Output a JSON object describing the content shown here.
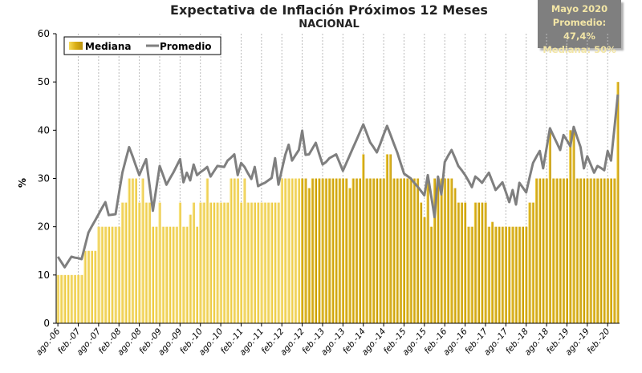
{
  "chart_data": {
    "type": "bar+line",
    "title": "Expectativa de Inflación Próximos 12 Meses",
    "subtitle": "NACIONAL",
    "ylabel": "%",
    "xlabel": "",
    "ylim": [
      0,
      60
    ],
    "yticks": [
      0,
      10,
      20,
      30,
      40,
      50,
      60
    ],
    "grid": "vertical dashed at each labeled month",
    "legend_position": "top-left",
    "annotation": {
      "line1": "Mayo 2020",
      "line2": "Promedio: 47,4%",
      "line3": "Mediana: 50%"
    },
    "x_start": "ago.-06",
    "x_end": "may.-20",
    "x_frequency": "monthly",
    "xtick_labels": [
      "ago.-06",
      "feb.-07",
      "ago.-07",
      "feb.-08",
      "ago.-08",
      "feb.-09",
      "ago.-09",
      "feb.-10",
      "ago.-10",
      "feb.-11",
      "ago.-11",
      "feb.-12",
      "ago.-12",
      "feb.-13",
      "ago.-13",
      "feb.-14",
      "ago.-14",
      "feb.-15",
      "ago.-15",
      "feb.-16",
      "ago.-16",
      "feb.-17",
      "ago.-17",
      "feb.-18",
      "ago.-18",
      "feb.-19",
      "ago.-19",
      "feb.-20"
    ],
    "series": [
      {
        "name": "Mediana",
        "type": "bar",
        "color": "#d8b020",
        "values": [
          10,
          10,
          10,
          10,
          10,
          10,
          10,
          10,
          15,
          15,
          15,
          15,
          20,
          20,
          20,
          20,
          20,
          20,
          20,
          25,
          25,
          30,
          30,
          30,
          25,
          30,
          25,
          25,
          20,
          20,
          25,
          20,
          20,
          20,
          20,
          20,
          25,
          20,
          20,
          22.5,
          25,
          20,
          25,
          25,
          30,
          25,
          25,
          25,
          25,
          25,
          25,
          30,
          30,
          30,
          25,
          30,
          25,
          25,
          25,
          25,
          25,
          25,
          25,
          25,
          25,
          25,
          30,
          30,
          30,
          30,
          30,
          30,
          30,
          30,
          28,
          30,
          30,
          30,
          30,
          30,
          30,
          30,
          30,
          30,
          30,
          30,
          28,
          30,
          30,
          30,
          35,
          30,
          30,
          30,
          30,
          30,
          30,
          35,
          35,
          30,
          30,
          30,
          30,
          30,
          30,
          30,
          30,
          25,
          22,
          30,
          20,
          30,
          30,
          30,
          30,
          30,
          30,
          28,
          25,
          25,
          25,
          20,
          20,
          25,
          25,
          25,
          25,
          20,
          21,
          20,
          20,
          20,
          20,
          20,
          20,
          20,
          20,
          20,
          20,
          25,
          25,
          30,
          30,
          30,
          30,
          40,
          30,
          30,
          30,
          30,
          30,
          40,
          40,
          30,
          30,
          30,
          30,
          30,
          30,
          30,
          30,
          30,
          30,
          30,
          30,
          50
        ]
      },
      {
        "name": "Promedio",
        "type": "line",
        "color": "#808080",
        "values": [
          13.8,
          12.7,
          11.6,
          12.7,
          13.8,
          13.6,
          13.5,
          13.3,
          16,
          18.8,
          20.1,
          21.3,
          22.6,
          23.9,
          25.1,
          22.4,
          22.5,
          22.6,
          26.9,
          31.2,
          33.9,
          36.5,
          34.6,
          32.6,
          30.7,
          32.4,
          34,
          28.7,
          23.3,
          28,
          32.6,
          30.7,
          28.7,
          30,
          31.2,
          32.6,
          34,
          29.2,
          31.2,
          29.6,
          32.9,
          30.7,
          31.3,
          31.8,
          32.4,
          30.4,
          31.5,
          32.6,
          32.5,
          32.4,
          33.7,
          34.3,
          35,
          30.7,
          33.2,
          32.4,
          31.1,
          29.9,
          32.4,
          28.4,
          28.8,
          29.1,
          29.6,
          30.1,
          34.2,
          28.7,
          31.8,
          34.9,
          37,
          33.7,
          34.8,
          35.9,
          39.9,
          34.9,
          35,
          36.2,
          37.4,
          35.1,
          32.9,
          33.4,
          34.2,
          34.6,
          35,
          33.3,
          31.6,
          33.2,
          34.8,
          36.4,
          38,
          39.6,
          41.2,
          39.4,
          37.5,
          36.5,
          35.4,
          37.2,
          39.1,
          40.9,
          39.1,
          37.2,
          35.4,
          33.2,
          31,
          30.5,
          30,
          29.1,
          28.3,
          27.4,
          26.5,
          30.7,
          26.4,
          22,
          30.4,
          26.7,
          33.4,
          34.7,
          35.9,
          34.3,
          32.6,
          31.7,
          30.7,
          29.5,
          28.2,
          30.4,
          29.8,
          29.1,
          30.2,
          31.2,
          29.4,
          27.6,
          28.4,
          29.2,
          27.2,
          25.1,
          27.6,
          24.6,
          29.1,
          28.1,
          27.1,
          30.2,
          33.2,
          34.5,
          35.7,
          32.1,
          36.3,
          40.4,
          38.9,
          37.4,
          35.9,
          39,
          37.9,
          36.7,
          40.7,
          38.6,
          36.5,
          32.1,
          34.6,
          32.9,
          31.2,
          32.6,
          32.2,
          31.7,
          35.7,
          33.7,
          40.5,
          47.4
        ]
      }
    ]
  }
}
